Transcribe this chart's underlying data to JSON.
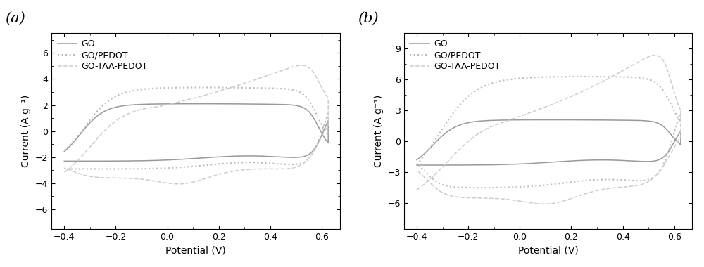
{
  "panel_a": {
    "label": "(a)",
    "xlim": [
      -0.45,
      0.67
    ],
    "ylim": [
      -7.5,
      7.5
    ],
    "yticks": [
      -6,
      -4,
      -2,
      0,
      2,
      4,
      6
    ],
    "xticks": [
      -0.4,
      -0.2,
      0.0,
      0.2,
      0.4,
      0.6
    ],
    "xlabel": "Potential (V)",
    "ylabel": "Current (A g⁻¹)"
  },
  "panel_b": {
    "label": "(b)",
    "xlim": [
      -0.45,
      0.67
    ],
    "ylim": [
      -8.5,
      10.5
    ],
    "yticks": [
      -6,
      -3,
      0,
      3,
      6,
      9
    ],
    "xticks": [
      -0.4,
      -0.2,
      0.0,
      0.2,
      0.4,
      0.6
    ],
    "xlabel": "Potential (V)",
    "ylabel": "Current (A g⁻¹)"
  },
  "legend_labels": [
    "GO",
    "GO/PEDOT",
    "GO-TAA-PEDOT"
  ],
  "go_color": "#999999",
  "gopedot_color": "#bbbbbb",
  "gotaa_color": "#cccccc",
  "background": "#ffffff"
}
